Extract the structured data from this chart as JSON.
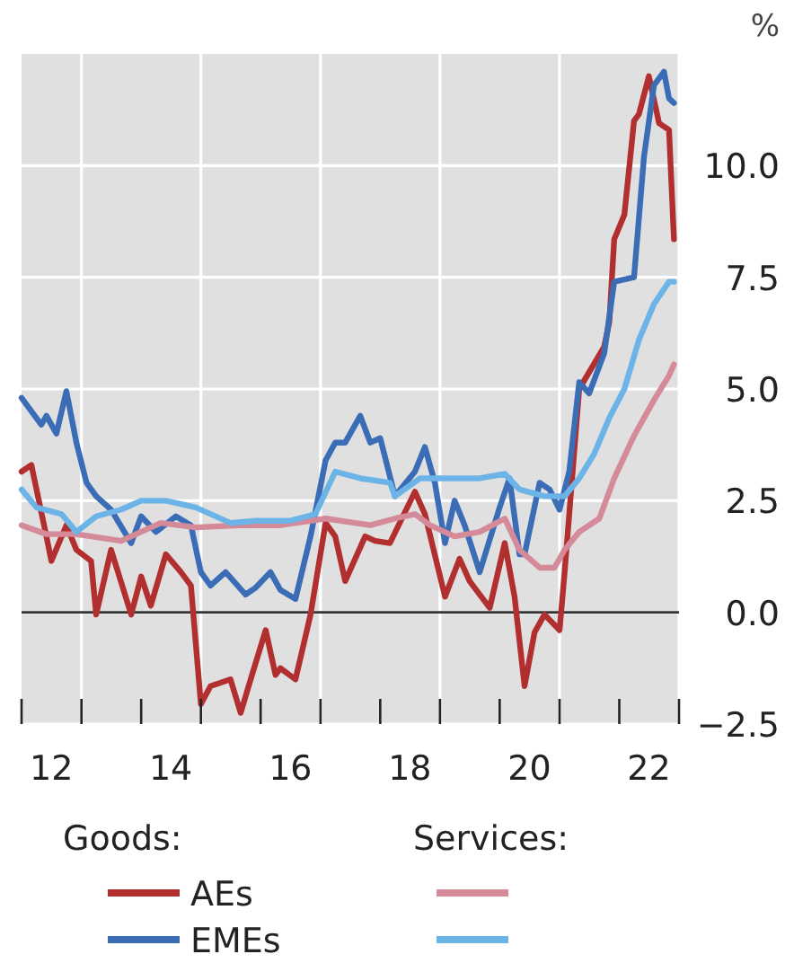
{
  "chart_data": {
    "type": "line",
    "ylabel": "%",
    "xlim": [
      "2012-01-01",
      "2023-01-01"
    ],
    "ylim": [
      -2.5,
      12.5
    ],
    "yticks": [
      {
        "value": -2.5,
        "label": "−2.5"
      },
      {
        "value": 0,
        "label": "0.0"
      },
      {
        "value": 2.5,
        "label": "2.5"
      },
      {
        "value": 5,
        "label": "5.0"
      },
      {
        "value": 7.5,
        "label": "7.5"
      },
      {
        "value": 10,
        "label": "10.0"
      }
    ],
    "xticks": [
      {
        "value": "2012-01-01",
        "label": null
      },
      {
        "value": "2012-07-01",
        "label": "12"
      },
      {
        "value": "2013-01-01",
        "label": null
      },
      {
        "value": "2014-01-01",
        "label": null
      },
      {
        "value": "2014-07-01",
        "label": "14"
      },
      {
        "value": "2015-01-01",
        "label": null
      },
      {
        "value": "2016-01-01",
        "label": null
      },
      {
        "value": "2016-07-01",
        "label": "16"
      },
      {
        "value": "2017-01-01",
        "label": null
      },
      {
        "value": "2018-01-01",
        "label": null
      },
      {
        "value": "2018-07-01",
        "label": "18"
      },
      {
        "value": "2019-01-01",
        "label": null
      },
      {
        "value": "2020-01-01",
        "label": null
      },
      {
        "value": "2020-07-01",
        "label": "20"
      },
      {
        "value": "2021-01-01",
        "label": null
      },
      {
        "value": "2022-01-01",
        "label": null
      },
      {
        "value": "2022-07-01",
        "label": "22"
      },
      {
        "value": "2023-01-01",
        "label": null
      }
    ],
    "grid": true,
    "legend": "bottom",
    "line_style": "solid",
    "marker": "none",
    "ref_lines": [
      {
        "axis": "y",
        "value": 0,
        "label": null,
        "color": "#333333"
      }
    ],
    "annotations": [
      "Goods:",
      "Services:"
    ],
    "series": [
      {
        "name": "AEs",
        "color": "#b22f2f",
        "x": [
          "2012-01",
          "2012-03",
          "2012-06",
          "2012-07",
          "2012-10",
          "2012-12",
          "2013-03",
          "2013-04",
          "2013-07",
          "2013-11",
          "2014-01",
          "2014-03",
          "2014-06",
          "2014-09",
          "2014-11",
          "2015-01",
          "2015-03",
          "2015-07",
          "2015-09",
          "2015-11",
          "2016-02",
          "2016-04",
          "2016-05",
          "2016-08",
          "2016-11",
          "2017-02",
          "2017-04",
          "2017-06",
          "2017-10",
          "2017-12",
          "2018-03",
          "2018-08",
          "2018-10",
          "2019-02",
          "2019-05",
          "2019-07",
          "2019-11",
          "2020-02",
          "2020-04",
          "2020-06",
          "2020-08",
          "2020-10",
          "2021-01",
          "2021-02",
          "2021-05",
          "2021-10",
          "2021-11",
          "2021-12",
          "2022-02",
          "2022-04",
          "2022-05",
          "2022-07",
          "2022-09",
          "2022-11",
          "2022-12"
        ],
        "values": [
          3.15,
          3.3,
          1.7,
          1.15,
          1.95,
          1.4,
          1.15,
          -0.05,
          1.4,
          -0.05,
          0.8,
          0.15,
          1.3,
          0.9,
          0.6,
          -2.05,
          -1.65,
          -1.5,
          -2.25,
          -1.5,
          -0.4,
          -1.4,
          -1.25,
          -1.5,
          -0.05,
          2.0,
          1.7,
          0.7,
          1.7,
          1.6,
          1.55,
          2.7,
          2.2,
          0.35,
          1.2,
          0.7,
          0.1,
          1.55,
          0.35,
          -1.65,
          -0.45,
          -0.05,
          -0.4,
          0.9,
          5.0,
          5.95,
          6.5,
          8.35,
          8.9,
          11.0,
          11.15,
          12.0,
          10.95,
          10.8,
          8.35
        ]
      },
      {
        "name": "EMEs",
        "color": "#3a6db5",
        "x": [
          "2012-01",
          "2012-05",
          "2012-06",
          "2012-08",
          "2012-10",
          "2012-12",
          "2013-02",
          "2013-04",
          "2013-07",
          "2013-11",
          "2014-01",
          "2014-04",
          "2014-08",
          "2014-11",
          "2015-01",
          "2015-03",
          "2015-06",
          "2015-10",
          "2015-12",
          "2016-03",
          "2016-05",
          "2016-08",
          "2016-11",
          "2017-02",
          "2017-04",
          "2017-06",
          "2017-09",
          "2017-11",
          "2018-01",
          "2018-04",
          "2018-08",
          "2018-10",
          "2018-12",
          "2019-02",
          "2019-04",
          "2019-06",
          "2019-09",
          "2020-01",
          "2020-03",
          "2020-05",
          "2020-06",
          "2020-09",
          "2020-11",
          "2021-01",
          "2021-03",
          "2021-05",
          "2021-07",
          "2021-10",
          "2021-12",
          "2022-04",
          "2022-06",
          "2022-08",
          "2022-10",
          "2022-11",
          "2022-12"
        ],
        "values": [
          4.8,
          4.2,
          4.4,
          4.0,
          4.95,
          3.8,
          2.9,
          2.6,
          2.3,
          1.55,
          2.15,
          1.8,
          2.15,
          1.95,
          0.9,
          0.6,
          0.9,
          0.4,
          0.55,
          0.9,
          0.5,
          0.3,
          1.7,
          3.4,
          3.8,
          3.8,
          4.4,
          3.8,
          3.9,
          2.6,
          3.15,
          3.7,
          2.9,
          1.55,
          2.5,
          1.95,
          0.9,
          2.35,
          3.0,
          1.3,
          1.3,
          2.9,
          2.75,
          2.3,
          3.15,
          5.15,
          4.9,
          5.8,
          7.4,
          7.5,
          10.2,
          11.8,
          12.1,
          11.5,
          11.4
        ]
      },
      {
        "color": "#d48a98",
        "x": [
          "2012-01",
          "2012-06",
          "2012-12",
          "2013-09",
          "2014-05",
          "2014-12",
          "2015-09",
          "2016-05",
          "2017-02",
          "2017-11",
          "2018-04",
          "2018-08",
          "2018-11",
          "2019-04",
          "2019-09",
          "2020-02",
          "2020-05",
          "2020-09",
          "2020-12",
          "2021-02",
          "2021-05",
          "2021-09",
          "2021-12",
          "2022-04",
          "2022-08",
          "2022-11",
          "2022-12"
        ],
        "values": [
          1.95,
          1.75,
          1.75,
          1.6,
          2.0,
          1.9,
          1.95,
          1.95,
          2.1,
          1.95,
          2.1,
          2.2,
          1.95,
          1.7,
          1.8,
          2.1,
          1.4,
          1.0,
          1.0,
          1.4,
          1.8,
          2.1,
          3.0,
          3.95,
          4.75,
          5.3,
          5.55
        ]
      },
      {
        "color": "#6cb4e8",
        "x": [
          "2012-01",
          "2012-04",
          "2012-09",
          "2012-12",
          "2013-04",
          "2013-09",
          "2014-01",
          "2014-06",
          "2014-12",
          "2015-07",
          "2015-12",
          "2016-07",
          "2016-12",
          "2017-04",
          "2017-09",
          "2018-03",
          "2018-04",
          "2018-09",
          "2019-03",
          "2019-09",
          "2020-02",
          "2020-05",
          "2020-10",
          "2021-02",
          "2021-05",
          "2021-08",
          "2021-11",
          "2022-02",
          "2022-05",
          "2022-08",
          "2022-11",
          "2022-12"
        ],
        "values": [
          2.75,
          2.35,
          2.2,
          1.8,
          2.15,
          2.3,
          2.5,
          2.5,
          2.35,
          2.0,
          2.05,
          2.05,
          2.2,
          3.15,
          3.0,
          2.9,
          2.6,
          3.0,
          3.0,
          3.0,
          3.1,
          2.75,
          2.6,
          2.6,
          3.0,
          3.55,
          4.35,
          5.0,
          6.1,
          6.9,
          7.4,
          7.4
        ]
      }
    ]
  }
}
